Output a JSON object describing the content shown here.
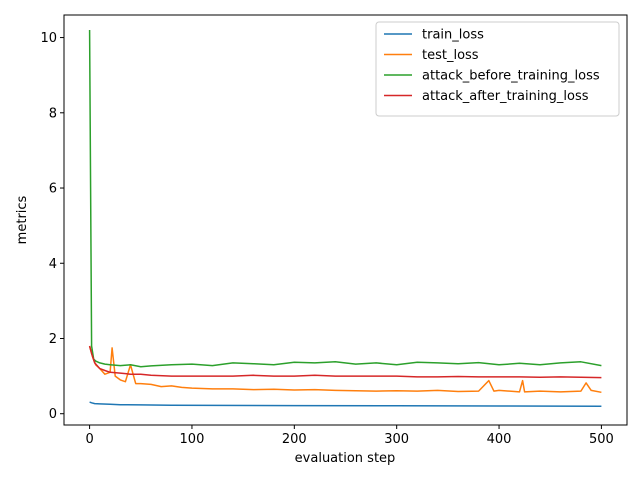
{
  "chart_data": {
    "type": "line",
    "title": "",
    "xlabel": "evaluation step",
    "ylabel": "metrics",
    "xlim": [
      -25,
      525
    ],
    "ylim": [
      -0.3,
      10.6
    ],
    "xticks": [
      0,
      100,
      200,
      300,
      400,
      500
    ],
    "yticks": [
      0,
      2,
      4,
      6,
      8,
      10
    ],
    "grid": false,
    "legend_position": "top-right",
    "series": [
      {
        "name": "train_loss",
        "color": "#1f77b4",
        "x": [
          0,
          2,
          5,
          10,
          20,
          30,
          50,
          80,
          120,
          200,
          300,
          400,
          500
        ],
        "y": [
          0.31,
          0.29,
          0.27,
          0.26,
          0.25,
          0.24,
          0.235,
          0.225,
          0.22,
          0.215,
          0.21,
          0.205,
          0.2
        ]
      },
      {
        "name": "test_loss",
        "color": "#ff7f0e",
        "x": [
          0,
          3,
          6,
          10,
          15,
          20,
          22,
          25,
          30,
          35,
          40,
          45,
          50,
          60,
          70,
          80,
          90,
          100,
          120,
          140,
          160,
          180,
          200,
          220,
          240,
          260,
          280,
          300,
          320,
          340,
          360,
          380,
          390,
          395,
          400,
          420,
          423,
          425,
          440,
          460,
          480,
          485,
          490,
          500
        ],
        "y": [
          1.8,
          1.5,
          1.3,
          1.2,
          1.05,
          1.1,
          1.75,
          1.0,
          0.9,
          0.85,
          1.3,
          0.8,
          0.8,
          0.78,
          0.72,
          0.74,
          0.7,
          0.68,
          0.66,
          0.66,
          0.64,
          0.65,
          0.63,
          0.64,
          0.62,
          0.61,
          0.6,
          0.61,
          0.6,
          0.62,
          0.59,
          0.6,
          0.88,
          0.6,
          0.62,
          0.58,
          0.88,
          0.58,
          0.6,
          0.58,
          0.6,
          0.82,
          0.62,
          0.57
        ]
      },
      {
        "name": "attack_before_training_loss",
        "color": "#2ca02c",
        "x": [
          0,
          1,
          2,
          4,
          6,
          10,
          15,
          20,
          30,
          40,
          50,
          60,
          80,
          100,
          120,
          140,
          160,
          180,
          200,
          220,
          240,
          260,
          280,
          300,
          320,
          340,
          360,
          380,
          400,
          420,
          440,
          460,
          480,
          500
        ],
        "y": [
          10.2,
          6.0,
          1.8,
          1.45,
          1.4,
          1.35,
          1.32,
          1.3,
          1.28,
          1.3,
          1.25,
          1.27,
          1.3,
          1.32,
          1.28,
          1.35,
          1.33,
          1.3,
          1.37,
          1.35,
          1.38,
          1.32,
          1.35,
          1.3,
          1.37,
          1.35,
          1.33,
          1.36,
          1.3,
          1.34,
          1.3,
          1.35,
          1.38,
          1.28
        ]
      },
      {
        "name": "attack_after_training_loss",
        "color": "#d62728",
        "x": [
          0,
          2,
          5,
          10,
          15,
          20,
          30,
          40,
          50,
          60,
          80,
          100,
          120,
          140,
          160,
          180,
          200,
          220,
          240,
          260,
          280,
          300,
          320,
          340,
          360,
          380,
          400,
          420,
          440,
          460,
          480,
          500
        ],
        "y": [
          1.8,
          1.6,
          1.35,
          1.2,
          1.15,
          1.1,
          1.08,
          1.05,
          1.05,
          1.02,
          1.0,
          1.0,
          1.0,
          1.0,
          1.02,
          1.0,
          1.0,
          1.02,
          1.0,
          1.0,
          1.0,
          1.0,
          0.98,
          0.98,
          0.99,
          0.98,
          0.98,
          0.98,
          0.97,
          0.98,
          0.97,
          0.96
        ]
      }
    ]
  }
}
